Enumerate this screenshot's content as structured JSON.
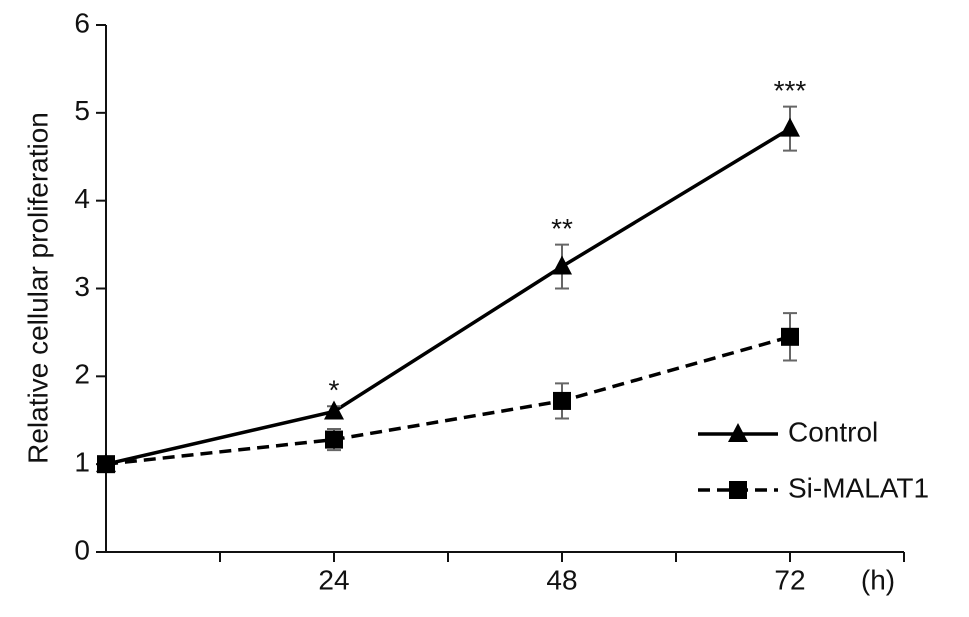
{
  "chart_data": {
    "type": "line",
    "y_label": "Relative cellular proliferation",
    "x_label": "(h)",
    "x": [
      0,
      24,
      48,
      72
    ],
    "xlim": [
      0,
      84
    ],
    "xticks": [
      24,
      48,
      72
    ],
    "xminorticks": [
      12,
      36,
      60,
      84
    ],
    "ylim": [
      0,
      6
    ],
    "yticks": [
      0,
      1,
      2,
      3,
      4,
      5,
      6
    ],
    "legend": "lower right",
    "series": [
      {
        "name": "Control",
        "color": "#000000",
        "marker": "triangle",
        "dash": false,
        "values": [
          1,
          1.6,
          3.25,
          4.82
        ],
        "errors": [
          0.04,
          0.06,
          0.25,
          0.25
        ],
        "significance": [
          null,
          "*",
          "**",
          "***"
        ]
      },
      {
        "name": "Si-MALAT1",
        "color": "#000000",
        "marker": "square",
        "dash": true,
        "values": [
          1,
          1.28,
          1.72,
          2.45
        ],
        "errors": [
          0.04,
          0.12,
          0.2,
          0.27
        ]
      }
    ]
  }
}
